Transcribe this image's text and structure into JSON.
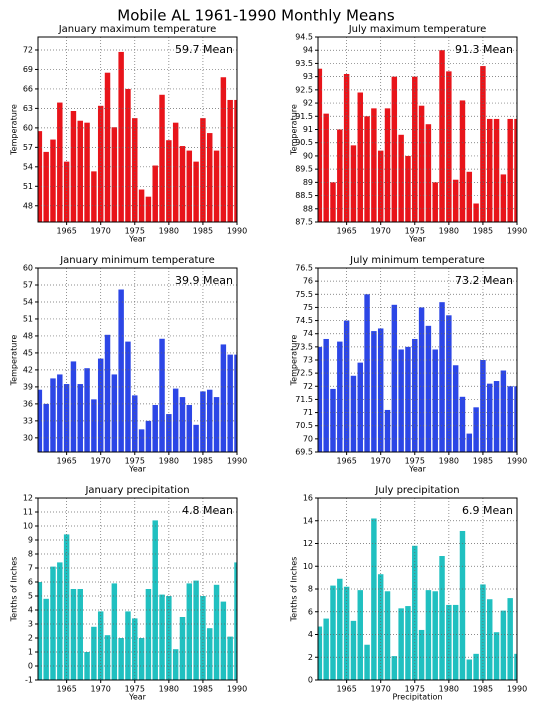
{
  "title": "Mobile AL   1961-1990 Monthly Means",
  "chart_data": [
    {
      "type": "bar",
      "title": "January maximum temperature",
      "annotation": "59.7 Mean",
      "xlabel": "Year",
      "ylabel": "Temperature",
      "color": "#e8141a",
      "x": [
        1961,
        1962,
        1963,
        1964,
        1965,
        1966,
        1967,
        1968,
        1969,
        1970,
        1971,
        1972,
        1973,
        1974,
        1975,
        1976,
        1977,
        1978,
        1979,
        1980,
        1981,
        1982,
        1983,
        1984,
        1985,
        1986,
        1987,
        1988,
        1989,
        1990
      ],
      "values": [
        59.5,
        56.3,
        58.2,
        63.9,
        54.8,
        62.6,
        61.1,
        60.8,
        53.3,
        63.4,
        68.5,
        60.1,
        71.7,
        66.0,
        61.5,
        50.5,
        49.4,
        54.2,
        65.1,
        58.1,
        60.8,
        57.2,
        56.5,
        54.8,
        61.5,
        59.2,
        56.5,
        67.8,
        64.3,
        64.3
      ],
      "xlim": [
        1960.8,
        1990
      ],
      "ylim": [
        45.5,
        74
      ],
      "xticks": [
        1965,
        1970,
        1975,
        1980,
        1985,
        1990
      ],
      "yticks": [
        48,
        51,
        54,
        57,
        60,
        63,
        66,
        69,
        72
      ],
      "grid": true
    },
    {
      "type": "bar",
      "title": "July maximum temperature",
      "annotation": "91.3 Mean",
      "xlabel": "Year",
      "ylabel": "Temperature",
      "color": "#e8141a",
      "x": [
        1961,
        1962,
        1963,
        1964,
        1965,
        1966,
        1967,
        1968,
        1969,
        1970,
        1971,
        1972,
        1973,
        1974,
        1975,
        1976,
        1977,
        1978,
        1979,
        1980,
        1981,
        1982,
        1983,
        1984,
        1985,
        1986,
        1987,
        1988,
        1989,
        1990
      ],
      "values": [
        93.3,
        91.6,
        89.0,
        91.0,
        93.1,
        90.4,
        92.4,
        91.5,
        91.8,
        90.2,
        91.8,
        93.0,
        90.8,
        90.0,
        93.0,
        91.9,
        91.2,
        89.0,
        94.0,
        93.2,
        89.1,
        92.1,
        89.4,
        88.2,
        93.4,
        91.4,
        91.4,
        89.3,
        91.4,
        91.4
      ],
      "xlim": [
        1960.8,
        1990
      ],
      "ylim": [
        87.5,
        94.5
      ],
      "xticks": [
        1965,
        1970,
        1975,
        1980,
        1985,
        1990
      ],
      "yticks": [
        87.5,
        88,
        88.5,
        89,
        89.5,
        90,
        90.5,
        91,
        91.5,
        92,
        92.5,
        93,
        93.5,
        94,
        94.5
      ],
      "grid": true
    },
    {
      "type": "bar",
      "title": "January minimum temperature",
      "annotation": "39.9 Mean",
      "xlabel": "Year",
      "ylabel": "Temperature",
      "color": "#2c46e6",
      "x": [
        1961,
        1962,
        1963,
        1964,
        1965,
        1966,
        1967,
        1968,
        1969,
        1970,
        1971,
        1972,
        1973,
        1974,
        1975,
        1976,
        1977,
        1978,
        1979,
        1980,
        1981,
        1982,
        1983,
        1984,
        1985,
        1986,
        1987,
        1988,
        1989,
        1990
      ],
      "values": [
        38.5,
        36,
        40.5,
        41.2,
        39.5,
        43.5,
        39.5,
        42.3,
        36.8,
        44,
        48.2,
        41.2,
        56.2,
        47,
        37.5,
        31.5,
        33,
        35.8,
        47.5,
        34.2,
        38.7,
        37.2,
        35.8,
        32.3,
        38.2,
        38.5,
        37.2,
        46.5,
        44.7,
        44.7
      ],
      "xlim": [
        1960.8,
        1990
      ],
      "ylim": [
        27.5,
        60
      ],
      "xticks": [
        1965,
        1970,
        1975,
        1980,
        1985,
        1990
      ],
      "yticks": [
        30,
        33,
        36,
        39,
        42,
        45,
        48,
        51,
        54,
        57,
        60
      ],
      "grid": true
    },
    {
      "type": "bar",
      "title": "July minimum temperature",
      "annotation": "73.2 Mean",
      "xlabel": "Year",
      "ylabel": "Temperature",
      "color": "#2c46e6",
      "x": [
        1961,
        1962,
        1963,
        1964,
        1965,
        1966,
        1967,
        1968,
        1969,
        1970,
        1971,
        1972,
        1973,
        1974,
        1975,
        1976,
        1977,
        1978,
        1979,
        1980,
        1981,
        1982,
        1983,
        1984,
        1985,
        1986,
        1987,
        1988,
        1989,
        1990
      ],
      "values": [
        73.5,
        73.8,
        71.9,
        73.7,
        74.5,
        72.4,
        72.9,
        75.5,
        74.1,
        74.2,
        71.1,
        75.1,
        73.4,
        73.5,
        73.8,
        75,
        74.3,
        73.4,
        75.2,
        74.7,
        72.8,
        71.6,
        70.2,
        71.2,
        73,
        72.1,
        72.2,
        72.6,
        72,
        72
      ],
      "xlim": [
        1960.8,
        1990
      ],
      "ylim": [
        69.5,
        76.5
      ],
      "xticks": [
        1965,
        1970,
        1975,
        1980,
        1985,
        1990
      ],
      "yticks": [
        69.5,
        70,
        70.5,
        71,
        71.5,
        72,
        72.5,
        73,
        73.5,
        74,
        74.5,
        75,
        75.5,
        76,
        76.5
      ],
      "grid": true
    },
    {
      "type": "bar",
      "title": "January precipitation",
      "annotation": "4.8 Mean",
      "xlabel": "Year",
      "ylabel": "Tenths of Inches",
      "color": "#20c0c0",
      "x": [
        1961,
        1962,
        1963,
        1964,
        1965,
        1966,
        1967,
        1968,
        1969,
        1970,
        1971,
        1972,
        1973,
        1974,
        1975,
        1976,
        1977,
        1978,
        1979,
        1980,
        1981,
        1982,
        1983,
        1984,
        1985,
        1986,
        1987,
        1988,
        1989,
        1990
      ],
      "values": [
        6.0,
        4.8,
        7.1,
        7.4,
        9.4,
        5.5,
        5.5,
        1.0,
        2.8,
        3.9,
        2.2,
        5.9,
        2.0,
        3.9,
        3.4,
        2.0,
        5.5,
        10.4,
        5.1,
        5.0,
        1.2,
        3.5,
        5.9,
        6.1,
        5.0,
        2.7,
        5.8,
        4.6,
        2.1,
        7.4
      ],
      "xlim": [
        1960.8,
        1990
      ],
      "ylim": [
        -1,
        12
      ],
      "xticks": [
        1965,
        1970,
        1975,
        1980,
        1985,
        1990
      ],
      "yticks": [
        -1,
        0,
        1,
        2,
        3,
        4,
        5,
        6,
        7,
        8,
        9,
        10,
        11,
        12
      ],
      "grid": true
    },
    {
      "type": "bar",
      "title": "July precipitation",
      "annotation": "6.9 Mean",
      "xlabel": "Precipitation",
      "ylabel": "Tenths of Inches",
      "color": "#20c0c0",
      "x": [
        1961,
        1962,
        1963,
        1964,
        1965,
        1966,
        1967,
        1968,
        1969,
        1970,
        1971,
        1972,
        1973,
        1974,
        1975,
        1976,
        1977,
        1978,
        1979,
        1980,
        1981,
        1982,
        1983,
        1984,
        1985,
        1986,
        1987,
        1988,
        1989,
        1990
      ],
      "values": [
        4.7,
        5.4,
        8.3,
        8.9,
        8.2,
        5.2,
        7.9,
        3.1,
        14.2,
        9.3,
        7.8,
        2.1,
        6.3,
        6.5,
        11.8,
        4.4,
        7.9,
        7.8,
        10.9,
        6.6,
        6.6,
        13.1,
        1.8,
        2.3,
        8.4,
        7.1,
        4.2,
        6.1,
        7.2,
        2.3
      ],
      "xlim": [
        1960.8,
        1990
      ],
      "ylim": [
        0,
        16
      ],
      "xticks": [
        1965,
        1970,
        1975,
        1980,
        1985,
        1990
      ],
      "yticks": [
        0,
        2,
        4,
        6,
        8,
        10,
        12,
        14,
        16
      ],
      "grid": true
    }
  ]
}
